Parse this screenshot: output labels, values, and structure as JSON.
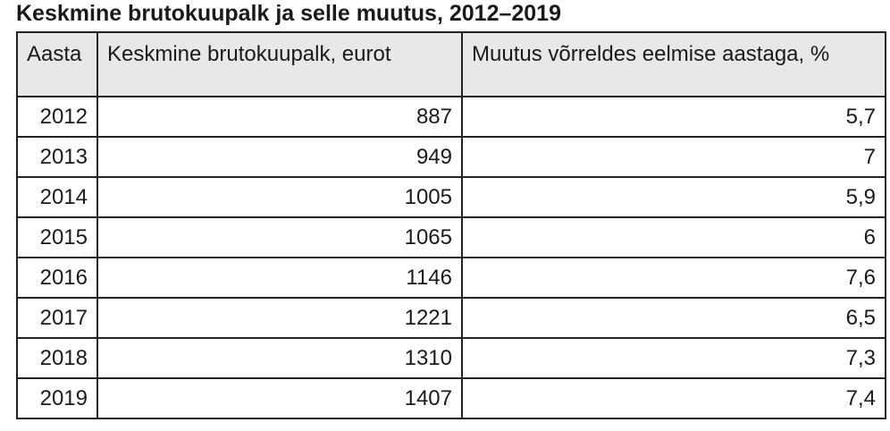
{
  "title": "Keskmine brutokuupalk ja selle muutus, 2012–2019",
  "table": {
    "headers": [
      "Aasta",
      "Keskmine brutokuupalk, eurot",
      "Muutus võrreldes eelmise aastaga, %"
    ],
    "rows": [
      [
        "2012",
        "887",
        "5,7"
      ],
      [
        "2013",
        "949",
        "7"
      ],
      [
        "2014",
        "1005",
        "5,9"
      ],
      [
        "2015",
        "1065",
        "6"
      ],
      [
        "2016",
        "1146",
        "7,6"
      ],
      [
        "2017",
        "1221",
        "6,5"
      ],
      [
        "2018",
        "1310",
        "7,3"
      ],
      [
        "2019",
        "1407",
        "7,4"
      ]
    ]
  }
}
